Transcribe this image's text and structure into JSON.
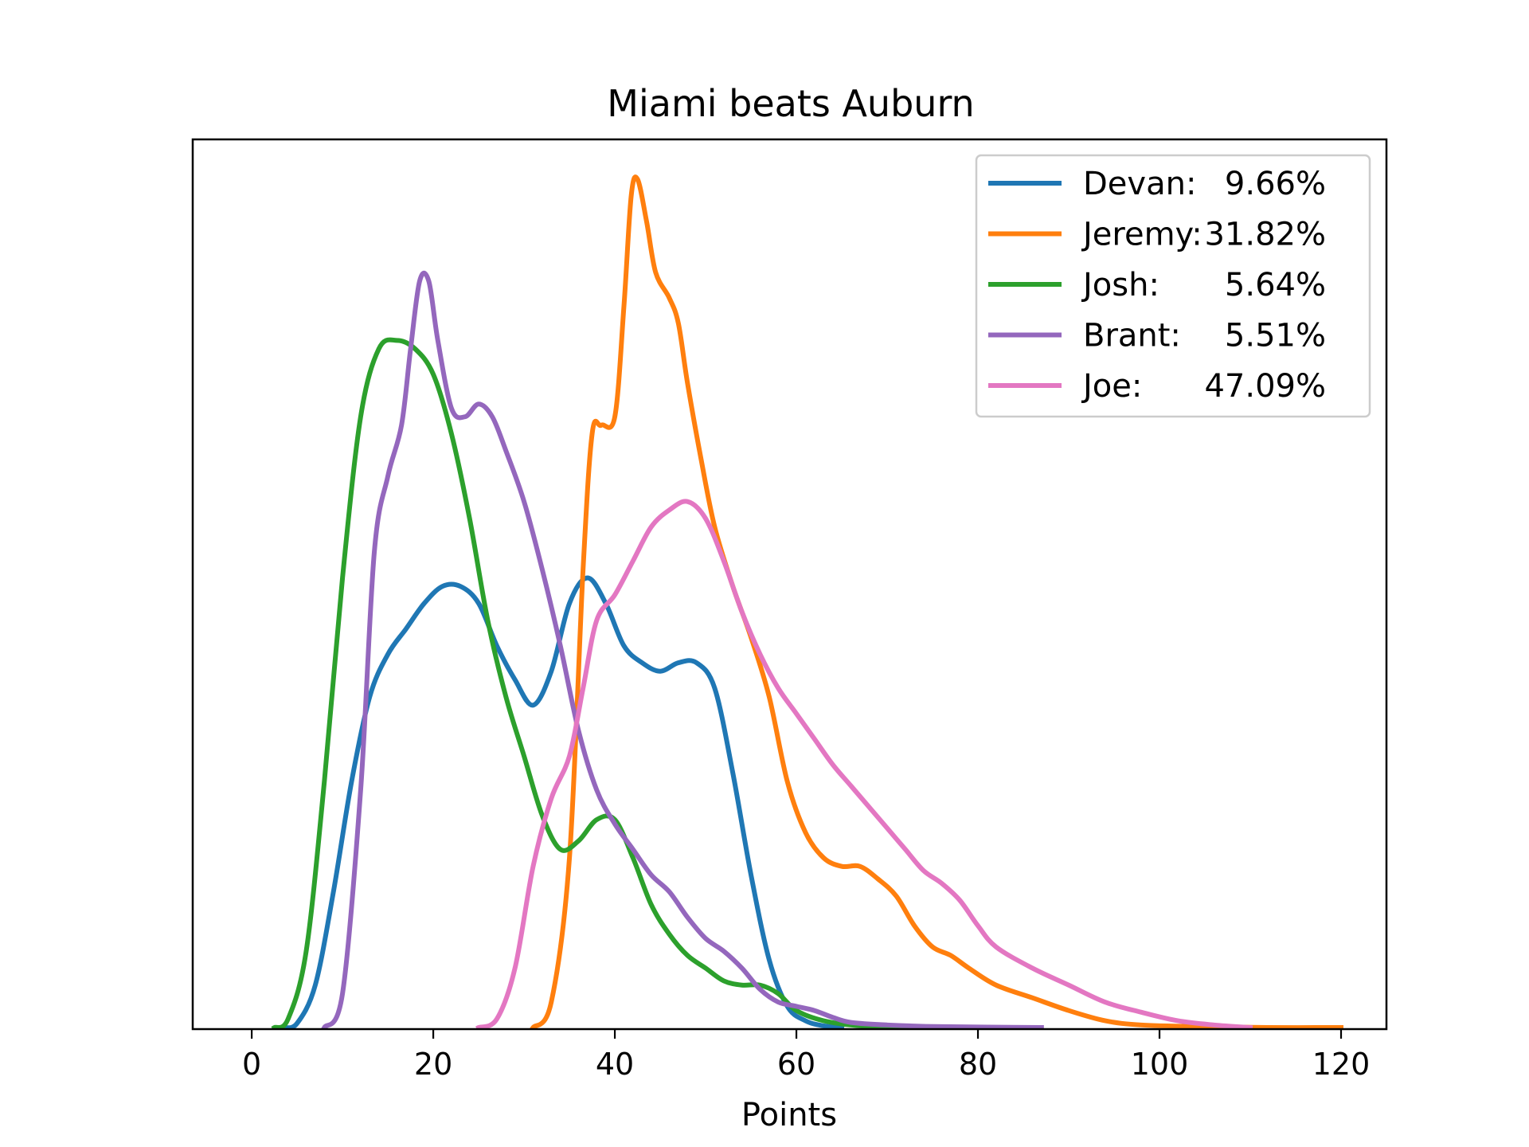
{
  "chart_data": {
    "type": "line",
    "title": "Miami beats Auburn",
    "xlabel": "Points",
    "ylabel": "",
    "xlim": [
      -6.5,
      125
    ],
    "ylim": [
      0,
      1
    ],
    "xticks": [
      0,
      20,
      40,
      60,
      80,
      100,
      120
    ],
    "xtick_labels": [
      "0",
      "20",
      "40",
      "60",
      "80",
      "100",
      "120"
    ],
    "yticks_visible": false,
    "grid": false,
    "legend_position": "top-right",
    "series": [
      {
        "name": "Devan:",
        "pct": "9.66%",
        "color": "#1f77b4",
        "points": [
          [
            3.5,
            0.0
          ],
          [
            5,
            0.005
          ],
          [
            7,
            0.05
          ],
          [
            9,
            0.16
          ],
          [
            11,
            0.29
          ],
          [
            13,
            0.39
          ],
          [
            15,
            0.44
          ],
          [
            17,
            0.47
          ],
          [
            19,
            0.5
          ],
          [
            21,
            0.52
          ],
          [
            23,
            0.52
          ],
          [
            25,
            0.5
          ],
          [
            27,
            0.45
          ],
          [
            29,
            0.41
          ],
          [
            31,
            0.38
          ],
          [
            33,
            0.42
          ],
          [
            35,
            0.5
          ],
          [
            37,
            0.53
          ],
          [
            39,
            0.5
          ],
          [
            41,
            0.45
          ],
          [
            43,
            0.43
          ],
          [
            45,
            0.42
          ],
          [
            47,
            0.43
          ],
          [
            49,
            0.43
          ],
          [
            51,
            0.4
          ],
          [
            53,
            0.3
          ],
          [
            55,
            0.18
          ],
          [
            57,
            0.08
          ],
          [
            59,
            0.025
          ],
          [
            61,
            0.008
          ],
          [
            63,
            0.002
          ],
          [
            65,
            0.0
          ]
        ]
      },
      {
        "name": "Jeremy:",
        "pct": "31.82%",
        "color": "#ff7f0e",
        "points": [
          [
            31,
            0.0
          ],
          [
            33,
            0.03
          ],
          [
            35,
            0.2
          ],
          [
            36.5,
            0.54
          ],
          [
            37.5,
            0.7
          ],
          [
            38.5,
            0.71
          ],
          [
            40,
            0.72
          ],
          [
            41,
            0.85
          ],
          [
            41.8,
            0.98
          ],
          [
            42.5,
            1.0
          ],
          [
            43.5,
            0.95
          ],
          [
            44.5,
            0.89
          ],
          [
            46,
            0.86
          ],
          [
            47,
            0.83
          ],
          [
            48,
            0.76
          ],
          [
            49.5,
            0.67
          ],
          [
            51,
            0.59
          ],
          [
            53,
            0.52
          ],
          [
            55,
            0.46
          ],
          [
            57,
            0.39
          ],
          [
            59,
            0.29
          ],
          [
            61,
            0.23
          ],
          [
            63,
            0.2
          ],
          [
            65,
            0.19
          ],
          [
            67,
            0.19
          ],
          [
            69,
            0.175
          ],
          [
            71,
            0.155
          ],
          [
            73,
            0.12
          ],
          [
            75,
            0.095
          ],
          [
            77,
            0.085
          ],
          [
            79,
            0.07
          ],
          [
            82,
            0.05
          ],
          [
            86,
            0.035
          ],
          [
            90,
            0.02
          ],
          [
            94,
            0.008
          ],
          [
            98,
            0.003
          ],
          [
            105,
            0.001
          ],
          [
            112,
            0.0
          ],
          [
            120,
            0.0
          ]
        ]
      },
      {
        "name": "Josh:",
        "pct": "5.64%",
        "color": "#2ca02c",
        "points": [
          [
            2.5,
            0.0
          ],
          [
            4,
            0.01
          ],
          [
            6,
            0.09
          ],
          [
            8,
            0.29
          ],
          [
            10,
            0.53
          ],
          [
            12,
            0.72
          ],
          [
            14,
            0.8
          ],
          [
            16,
            0.81
          ],
          [
            18,
            0.8
          ],
          [
            20,
            0.77
          ],
          [
            22,
            0.7
          ],
          [
            24,
            0.6
          ],
          [
            26,
            0.48
          ],
          [
            28,
            0.39
          ],
          [
            30,
            0.32
          ],
          [
            32,
            0.25
          ],
          [
            34,
            0.21
          ],
          [
            36,
            0.22
          ],
          [
            38,
            0.245
          ],
          [
            40,
            0.245
          ],
          [
            42,
            0.2
          ],
          [
            44,
            0.145
          ],
          [
            46,
            0.11
          ],
          [
            48,
            0.085
          ],
          [
            50,
            0.07
          ],
          [
            52,
            0.055
          ],
          [
            54,
            0.05
          ],
          [
            56,
            0.05
          ],
          [
            58,
            0.04
          ],
          [
            60,
            0.02
          ],
          [
            63,
            0.008
          ],
          [
            67,
            0.002
          ],
          [
            73,
            0.0
          ]
        ]
      },
      {
        "name": "Brant:",
        "pct": "5.51%",
        "color": "#9467bd",
        "points": [
          [
            8,
            0.0
          ],
          [
            10,
            0.04
          ],
          [
            12,
            0.28
          ],
          [
            13.5,
            0.56
          ],
          [
            15,
            0.65
          ],
          [
            16.5,
            0.71
          ],
          [
            17.5,
            0.8
          ],
          [
            18.5,
            0.88
          ],
          [
            19.5,
            0.88
          ],
          [
            20.5,
            0.81
          ],
          [
            22,
            0.73
          ],
          [
            23.5,
            0.72
          ],
          [
            25,
            0.735
          ],
          [
            26.5,
            0.72
          ],
          [
            28,
            0.68
          ],
          [
            30,
            0.62
          ],
          [
            32,
            0.54
          ],
          [
            34,
            0.45
          ],
          [
            36,
            0.35
          ],
          [
            38,
            0.28
          ],
          [
            40,
            0.24
          ],
          [
            42,
            0.21
          ],
          [
            44,
            0.18
          ],
          [
            46,
            0.16
          ],
          [
            48,
            0.13
          ],
          [
            50,
            0.105
          ],
          [
            52,
            0.09
          ],
          [
            54,
            0.07
          ],
          [
            56,
            0.045
          ],
          [
            58,
            0.03
          ],
          [
            60,
            0.025
          ],
          [
            62,
            0.02
          ],
          [
            64,
            0.012
          ],
          [
            66,
            0.006
          ],
          [
            70,
            0.003
          ],
          [
            76,
            0.001
          ],
          [
            87,
            0.0
          ]
        ]
      },
      {
        "name": "Joe:",
        "pct": "47.09%",
        "color": "#e377c2",
        "points": [
          [
            25,
            0.0
          ],
          [
            27,
            0.01
          ],
          [
            29,
            0.07
          ],
          [
            31,
            0.19
          ],
          [
            33,
            0.27
          ],
          [
            35,
            0.32
          ],
          [
            36.5,
            0.4
          ],
          [
            38,
            0.48
          ],
          [
            40,
            0.51
          ],
          [
            42,
            0.55
          ],
          [
            44,
            0.59
          ],
          [
            46,
            0.61
          ],
          [
            48,
            0.62
          ],
          [
            50,
            0.6
          ],
          [
            52,
            0.55
          ],
          [
            54,
            0.49
          ],
          [
            56,
            0.44
          ],
          [
            58,
            0.4
          ],
          [
            60,
            0.37
          ],
          [
            62,
            0.34
          ],
          [
            64,
            0.31
          ],
          [
            66,
            0.285
          ],
          [
            68,
            0.26
          ],
          [
            70,
            0.235
          ],
          [
            72,
            0.21
          ],
          [
            74,
            0.185
          ],
          [
            76,
            0.17
          ],
          [
            78,
            0.15
          ],
          [
            80,
            0.12
          ],
          [
            82,
            0.095
          ],
          [
            86,
            0.07
          ],
          [
            90,
            0.05
          ],
          [
            94,
            0.03
          ],
          [
            98,
            0.018
          ],
          [
            102,
            0.008
          ],
          [
            106,
            0.003
          ],
          [
            110,
            0.0
          ]
        ]
      }
    ]
  }
}
